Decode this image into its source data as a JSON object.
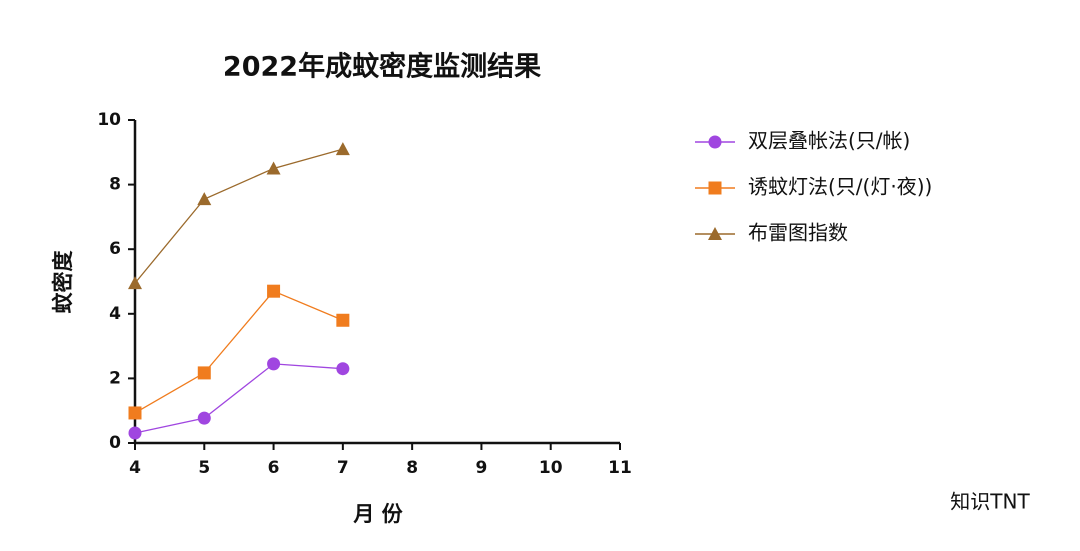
{
  "chart_data": {
    "type": "line",
    "title": "2022年成蚊密度监测结果",
    "x_label": "月 份",
    "y_label": "蚊密度",
    "x": [
      4,
      5,
      6,
      7
    ],
    "xlim": [
      4,
      11
    ],
    "xticks": [
      4,
      5,
      6,
      7,
      8,
      9,
      10,
      11
    ],
    "ylim": [
      0,
      10
    ],
    "yticks": [
      0,
      2,
      4,
      6,
      8,
      10
    ],
    "series": [
      {
        "name": "双层叠帐法(只/帐)",
        "color": "#a046e0",
        "marker": "circle",
        "values": [
          0.31,
          0.77,
          2.45,
          2.3
        ]
      },
      {
        "name": "诱蚊灯法(只/(灯·夜))",
        "color": "#f07c1e",
        "marker": "square",
        "values": [
          0.93,
          2.17,
          4.7,
          3.8
        ]
      },
      {
        "name": "布雷图指数",
        "color": "#9b6a2c",
        "marker": "triangle",
        "values": [
          4.95,
          7.55,
          8.5,
          9.1
        ]
      }
    ],
    "watermark": "知识TNT"
  }
}
